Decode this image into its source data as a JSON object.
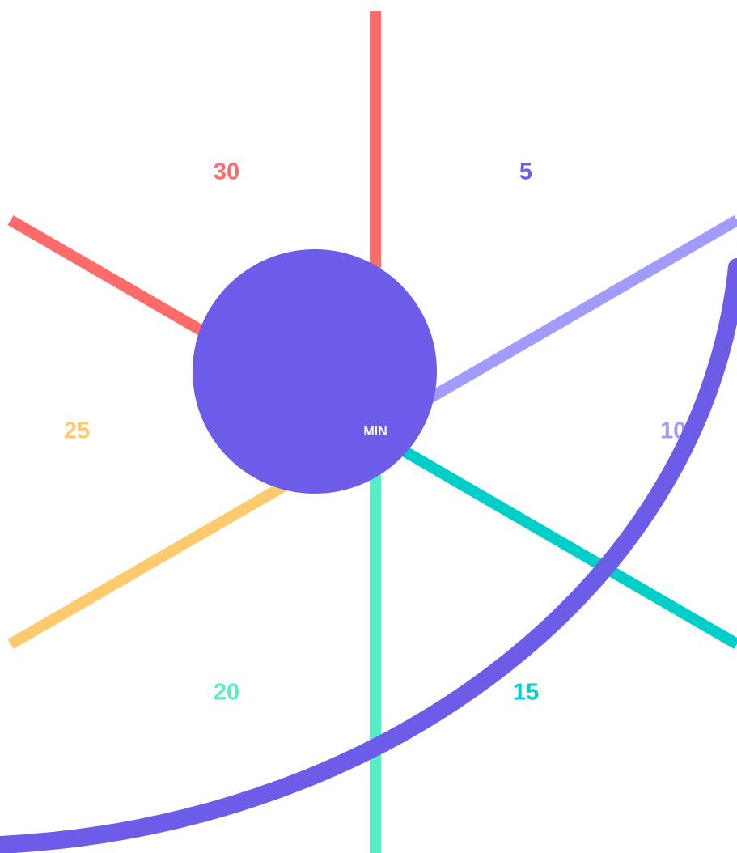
{
  "center": {
    "label": "MIN",
    "color": "#6c5ce7"
  },
  "arc": {
    "color": "#6c5ce7"
  },
  "spokes": [
    {
      "name": "spoke-30",
      "color": "#ff6b6b"
    },
    {
      "name": "spoke-5",
      "color": "#a29bfe"
    },
    {
      "name": "spoke-10",
      "color": "#00cec9"
    },
    {
      "name": "spoke-15",
      "color": "#55efc4"
    },
    {
      "name": "spoke-20",
      "color": "#fdcb6e"
    },
    {
      "name": "spoke-25",
      "color": "#ff6b6b"
    }
  ],
  "labels": [
    {
      "name": "label-30",
      "text": "30",
      "color": "#ff6b6b"
    },
    {
      "name": "label-5",
      "text": "5",
      "color": "#6c5ce7"
    },
    {
      "name": "label-10",
      "text": "10",
      "color": "#a29bfe"
    },
    {
      "name": "label-15",
      "text": "15",
      "color": "#00cec9"
    },
    {
      "name": "label-20",
      "text": "20",
      "color": "#55efc4"
    },
    {
      "name": "label-25",
      "text": "25",
      "color": "#fdcb6e"
    }
  ]
}
